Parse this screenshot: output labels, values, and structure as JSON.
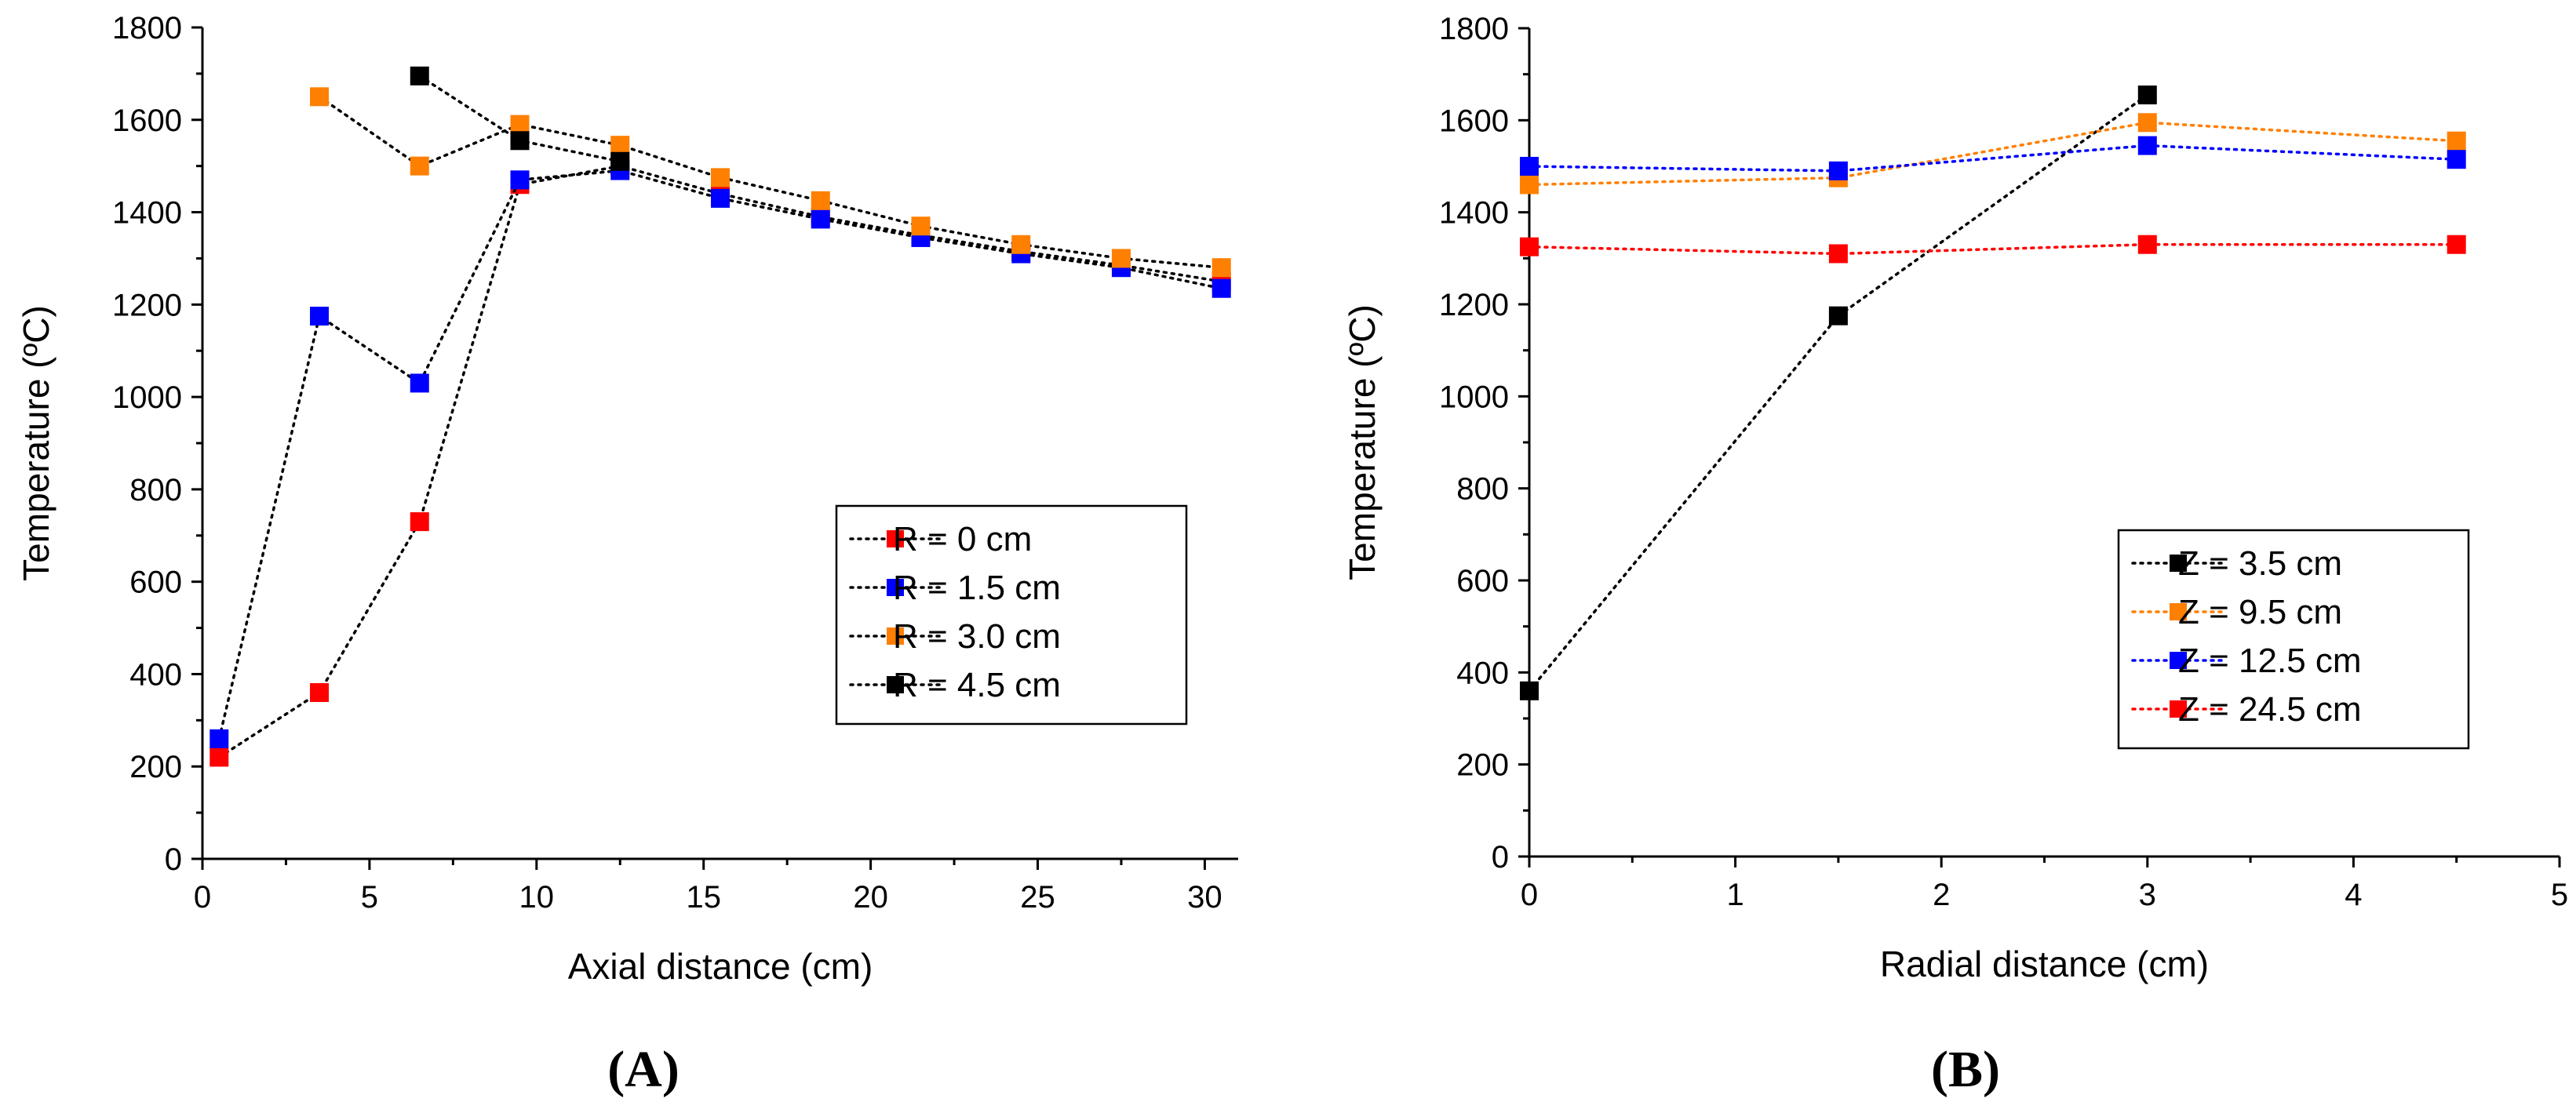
{
  "chart_data": [
    {
      "type": "line",
      "panel": "(A)",
      "xlabel": "Axial distance (cm)",
      "ylabel": "Temperature (ºC)",
      "xlim": [
        0,
        31
      ],
      "ylim": [
        0,
        1800
      ],
      "xticks": [
        "0",
        "5",
        "10",
        "15",
        "20",
        "25",
        "30"
      ],
      "yticks": [
        "0",
        "200",
        "400",
        "600",
        "800",
        "1000",
        "1200",
        "1400",
        "1600",
        "1800"
      ],
      "legend_position": "right-center",
      "series": [
        {
          "name": "R = 0 cm",
          "color": "#ff0000",
          "points": [
            [
              0.5,
              220
            ],
            [
              3.5,
              360
            ],
            [
              6.5,
              730
            ],
            [
              9.5,
              1460
            ],
            [
              12.5,
              1500
            ],
            [
              15.5,
              1440
            ],
            [
              18.5,
              1390
            ],
            [
              21.5,
              1350
            ],
            [
              24.5,
              1315
            ],
            [
              27.5,
              1285
            ],
            [
              30.5,
              1250
            ]
          ]
        },
        {
          "name": "R = 1.5 cm",
          "color": "#0000ff",
          "points": [
            [
              0.5,
              260
            ],
            [
              3.5,
              1175
            ],
            [
              6.5,
              1030
            ],
            [
              9.5,
              1470
            ],
            [
              12.5,
              1490
            ],
            [
              15.5,
              1430
            ],
            [
              18.5,
              1385
            ],
            [
              21.5,
              1345
            ],
            [
              24.5,
              1310
            ],
            [
              27.5,
              1280
            ],
            [
              30.5,
              1235
            ]
          ]
        },
        {
          "name": "R = 3.0 cm",
          "color": "#ff7f00",
          "points": [
            [
              3.5,
              1650
            ],
            [
              6.5,
              1500
            ],
            [
              9.5,
              1590
            ],
            [
              12.5,
              1545
            ],
            [
              15.5,
              1475
            ],
            [
              18.5,
              1425
            ],
            [
              21.5,
              1370
            ],
            [
              24.5,
              1330
            ],
            [
              27.5,
              1300
            ],
            [
              30.5,
              1280
            ]
          ]
        },
        {
          "name": "R = 4.5 cm",
          "color": "#000000",
          "points": [
            [
              6.5,
              1695
            ],
            [
              9.5,
              1555
            ],
            [
              12.5,
              1510
            ]
          ]
        }
      ]
    },
    {
      "type": "line",
      "panel": "(B)",
      "xlabel": "Radial distance (cm)",
      "ylabel": "Temperature (ºC)",
      "xlim": [
        0,
        5
      ],
      "ylim": [
        0,
        1800
      ],
      "xticks": [
        "0",
        "1",
        "2",
        "3",
        "4",
        "5"
      ],
      "yticks": [
        "0",
        "200",
        "400",
        "600",
        "800",
        "1000",
        "1200",
        "1400",
        "1600",
        "1800"
      ],
      "legend_position": "bottom-right",
      "series": [
        {
          "name": "Z = 3.5 cm",
          "color": "#000000",
          "points": [
            [
              0,
              360
            ],
            [
              1.5,
              1175
            ],
            [
              3,
              1655
            ]
          ]
        },
        {
          "name": "Z = 9.5 cm",
          "color": "#ff7f00",
          "points": [
            [
              0,
              1460
            ],
            [
              1.5,
              1475
            ],
            [
              3,
              1595
            ],
            [
              4.5,
              1555
            ]
          ]
        },
        {
          "name": "Z = 12.5 cm",
          "color": "#0000ff",
          "points": [
            [
              0,
              1500
            ],
            [
              1.5,
              1490
            ],
            [
              3,
              1545
            ],
            [
              4.5,
              1515
            ]
          ]
        },
        {
          "name": "Z = 24.5 cm",
          "color": "#ff0000",
          "points": [
            [
              0,
              1325
            ],
            [
              1.5,
              1310
            ],
            [
              3,
              1330
            ],
            [
              4.5,
              1330
            ]
          ]
        }
      ]
    }
  ]
}
